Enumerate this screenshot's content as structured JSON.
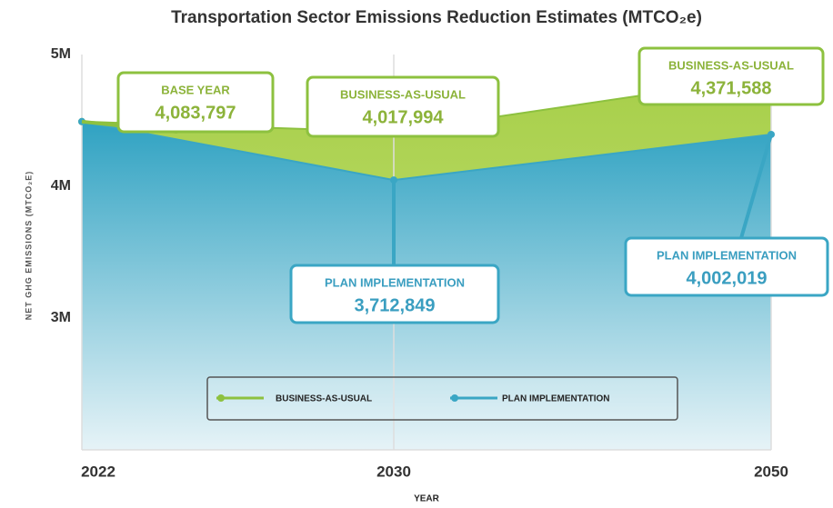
{
  "chart_data": {
    "type": "area",
    "title": "Transportation Sector Emissions Reduction Estimates (MTCO₂e)",
    "x_label": "YEAR",
    "y_label": "NET GHG EMISSIONS (MTCO₂E)",
    "categories": [
      "2022",
      "2030",
      "2050"
    ],
    "series": [
      {
        "name": "BUSINESS-AS-USUAL",
        "color": "#8dc13f",
        "values": [
          4083797,
          4017994,
          4371588
        ],
        "value_labels": [
          "4,083,797",
          "4,017,994",
          "4,371,588"
        ]
      },
      {
        "name": "PLAN IMPLEMENTATION",
        "color": "#3aa6c4",
        "values": [
          4083797,
          3712849,
          4002019
        ],
        "value_labels": [
          null,
          "3,712,849",
          "4,002,019"
        ]
      }
    ],
    "annotations": [
      "BASE YEAR"
    ],
    "ylim": [
      2000000,
      5000000
    ],
    "yticks": [
      {
        "value": 3000000,
        "label": "3M"
      },
      {
        "value": 4000000,
        "label": "4M"
      },
      {
        "value": 5000000,
        "label": "5M"
      }
    ],
    "legend": "bottom"
  }
}
